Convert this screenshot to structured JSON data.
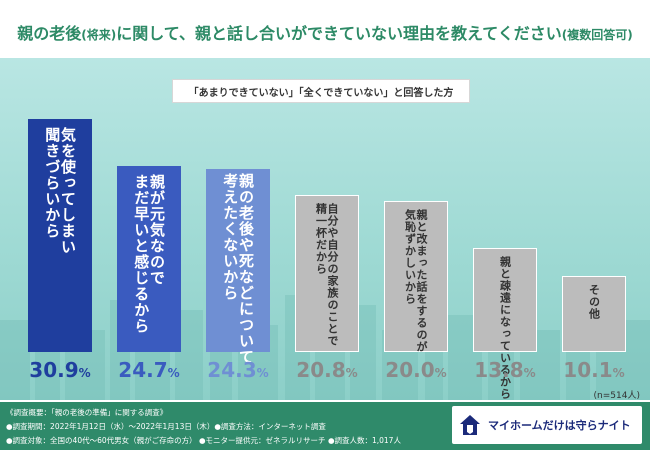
{
  "header": {
    "title_main": "親の老後",
    "title_paren": "(将来)",
    "title_rest": "に関して、親と話し合いができていない理由を教えてください",
    "title_suffix": "(複数回答可)"
  },
  "subtitle": "「あまりできていない」「全くできていない」と回答した方",
  "chart_data": {
    "type": "bar",
    "categories": [
      "気を使ってしまい聞きづらいから",
      "親が元気なのでまだ早いと感じるから",
      "親の老後や死などについて考えたくないから",
      "自分や自分の家族のことで精一杯だから",
      "親と改まった話をするのが気恥ずかしいから",
      "親と疎遠になっているから",
      "その他"
    ],
    "values": [
      30.9,
      24.7,
      24.3,
      20.8,
      20.0,
      13.8,
      10.1
    ],
    "value_labels": [
      "30.9%",
      "24.7%",
      "24.3%",
      "20.8%",
      "20.0%",
      "13.8%",
      "10.1%"
    ],
    "label_lines": [
      [
        "気を使ってしまい",
        "聞きづらいから"
      ],
      [
        "親が元気なので",
        "まだ早いと感じるから"
      ],
      [
        "親の老後や死などについて",
        "考えたくないから"
      ],
      [
        "自分や自分の家族のことで",
        "精一杯だから"
      ],
      [
        "親と改まった話をするのが",
        "気恥ずかしいから"
      ],
      [
        "親と疎遠になっているから"
      ],
      [
        "その他"
      ]
    ],
    "bar_colors": [
      "#1f3e9e",
      "#3a5bbf",
      "#6f8fd3",
      "#bcbcbc",
      "#bcbcbc",
      "#bcbcbc",
      "#bcbcbc"
    ],
    "label_colors": [
      "#ffffff",
      "#ffffff",
      "#ffffff",
      "#333333",
      "#333333",
      "#333333",
      "#333333"
    ],
    "pct_colors": [
      "#1f3e9e",
      "#3a5bbf",
      "#6f8fd3",
      "#8a8a8a",
      "#8a8a8a",
      "#8a8a8a",
      "#8a8a8a"
    ],
    "ylim": [
      0,
      35
    ],
    "note": "(n=514人)"
  },
  "footer": {
    "line1": "《調査概要：「親の老後の準備」に関する調査》",
    "line2": "●調査期間：2022年1月12日（水）～2022年1月13日（木）●調査方法：インターネット調査",
    "line3": "●調査対象：全国の40代～60代男女（親がご存命の方） ●モニター提供元：ゼネラルリサーチ ●調査人数：1,017人"
  },
  "logo": {
    "text": "マイホームだけは守らナイト"
  }
}
